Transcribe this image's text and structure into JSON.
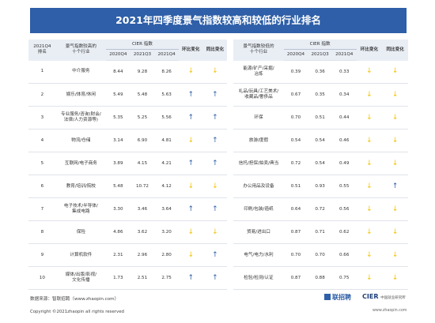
{
  "title": "2021年四季度景气指数较高和较低的行业排名",
  "headers": {
    "rank": "2021Q4\n排名",
    "high_group": "景气指数较高的\n十个行业",
    "cier": "CIER 指数",
    "q4_2020": "2020Q4",
    "q3_2021": "2021Q3",
    "q4_2021": "2021Q4",
    "yoy_label": "环比变化",
    "mom_label": "同比变化",
    "low_group": "景气指数较低的\n十个行业"
  },
  "icons": {
    "up": "arrow-up-icon",
    "down": "arrow-down-icon"
  },
  "colors": {
    "banner": "#2e5fa8",
    "up": "#2e5fa8",
    "down": "#f2c300"
  },
  "rows": [
    {
      "rank": "1",
      "high_name": "中介服务",
      "h20": "8.44",
      "h21q3": "9.28",
      "h21q4": "8.26",
      "h_a": "down",
      "h_b": "down",
      "low_name": "能源/矿产/采掘/\n冶炼",
      "l20": "0.39",
      "l21q3": "0.36",
      "l21q4": "0.33",
      "l_a": "down",
      "l_b": "down"
    },
    {
      "rank": "2",
      "high_name": "娱乐/体育/休闲",
      "h20": "5.49",
      "h21q3": "5.48",
      "h21q4": "5.63",
      "h_a": "up",
      "h_b": "up",
      "low_name": "礼品/玩具/工艺美术/\n收藏品/奢侈品",
      "l20": "0.67",
      "l21q3": "0.35",
      "l21q4": "0.34",
      "l_a": "down",
      "l_b": "down"
    },
    {
      "rank": "3",
      "high_name": "专业服务/咨询(财会/\n法律/人力资源等)",
      "h20": "5.35",
      "h21q3": "5.25",
      "h21q4": "5.56",
      "h_a": "up",
      "h_b": "up",
      "low_name": "环保",
      "l20": "0.70",
      "l21q3": "0.51",
      "l21q4": "0.44",
      "l_a": "down",
      "l_b": "down"
    },
    {
      "rank": "4",
      "high_name": "物流/仓储",
      "h20": "3.14",
      "h21q3": "6.90",
      "h21q4": "4.81",
      "h_a": "down",
      "h_b": "up",
      "low_name": "旅游/度假",
      "l20": "0.54",
      "l21q3": "0.54",
      "l21q4": "0.46",
      "l_a": "down",
      "l_b": "down"
    },
    {
      "rank": "5",
      "high_name": "互联网/电子商务",
      "h20": "3.89",
      "h21q3": "4.15",
      "h21q4": "4.21",
      "h_a": "up",
      "h_b": "up",
      "low_name": "信托/担保/拍卖/典当",
      "l20": "0.72",
      "l21q3": "0.54",
      "l21q4": "0.49",
      "l_a": "down",
      "l_b": "down"
    },
    {
      "rank": "6",
      "high_name": "教育/培训/院校",
      "h20": "5.48",
      "h21q3": "10.72",
      "h21q4": "4.12",
      "h_a": "down",
      "h_b": "down",
      "low_name": "办公用品及设备",
      "l20": "0.51",
      "l21q3": "0.93",
      "l21q4": "0.55",
      "l_a": "down",
      "l_b": "up"
    },
    {
      "rank": "7",
      "high_name": "电子技术/半导体/\n集成电路",
      "h20": "3.30",
      "h21q3": "3.46",
      "h21q4": "3.64",
      "h_a": "up",
      "h_b": "up",
      "low_name": "印刷/包装/造纸",
      "l20": "0.64",
      "l21q3": "0.72",
      "l21q4": "0.56",
      "l_a": "down",
      "l_b": "down"
    },
    {
      "rank": "8",
      "high_name": "保险",
      "h20": "4.86",
      "h21q3": "3.62",
      "h21q4": "3.20",
      "h_a": "down",
      "h_b": "down",
      "low_name": "贸易/进出口",
      "l20": "0.87",
      "l21q3": "0.71",
      "l21q4": "0.62",
      "l_a": "down",
      "l_b": "down"
    },
    {
      "rank": "9",
      "high_name": "计算机软件",
      "h20": "2.31",
      "h21q3": "2.96",
      "h21q4": "2.80",
      "h_a": "down",
      "h_b": "up",
      "low_name": "电气/电力/水利",
      "l20": "0.70",
      "l21q3": "0.70",
      "l21q4": "0.66",
      "l_a": "down",
      "l_b": "down"
    },
    {
      "rank": "10",
      "high_name": "媒体/出版/影视/\n文化传播",
      "h20": "1.73",
      "h21q3": "2.51",
      "h21q4": "2.75",
      "h_a": "up",
      "h_b": "up",
      "low_name": "检验/检测/认证",
      "l20": "0.87",
      "l21q3": "0.88",
      "l21q4": "0.75",
      "l_a": "down",
      "l_b": "down"
    }
  ],
  "footer": {
    "source": "数据来源：智联招聘（www.zhaopin.com）",
    "copyright": "Copyright ©2021zhaopin all rights reserved",
    "logo1": "联招聘",
    "logo2": "CIER",
    "logo2_sub": "中国就业研究所",
    "site": "www.zhaopin.com"
  }
}
